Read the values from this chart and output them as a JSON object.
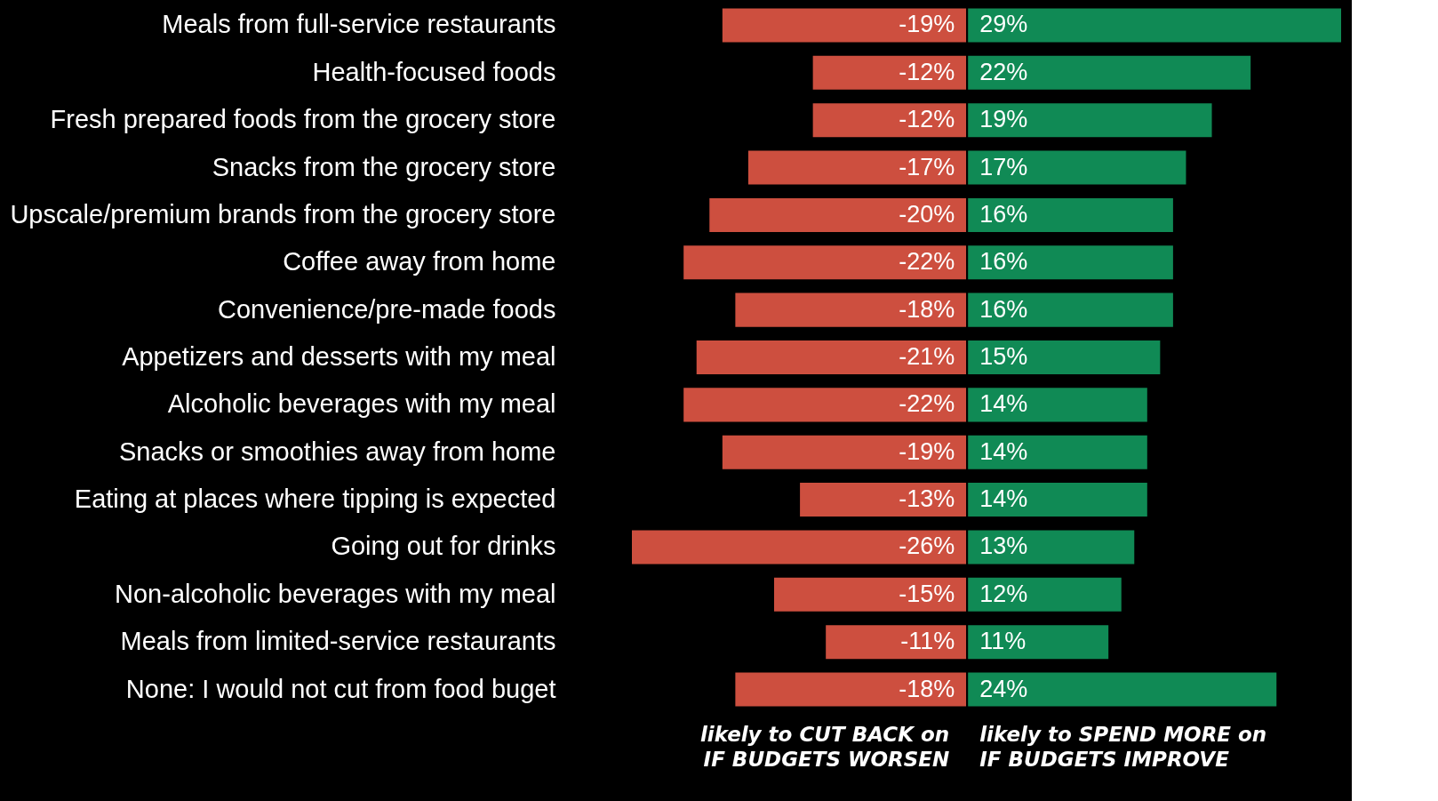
{
  "chart_data": {
    "type": "bar",
    "orientation": "horizontal",
    "stacked": true,
    "grid": false,
    "categories": [
      "Meals from full-service restaurants",
      "Health-focused foods",
      "Fresh prepared foods from the grocery store",
      "Snacks from the grocery store",
      "Upscale/premium brands from the grocery store",
      "Coffee away from home",
      "Convenience/pre-made foods",
      "Appetizers and desserts with my meal",
      "Alcoholic beverages with my meal",
      "Snacks or smoothies away from home",
      "Eating at places where tipping is expected",
      "Going out for drinks",
      "Non-alcoholic beverages with my meal",
      "Meals from limited-service restaurants",
      "None: I would not cut from food buget"
    ],
    "series": [
      {
        "name": "likely to CUT BACK on\nIF BUDGETS WORSEN",
        "color": "#cd4f3f",
        "values": [
          -19,
          -12,
          -12,
          -17,
          -20,
          -22,
          -18,
          -21,
          -22,
          -19,
          -13,
          -26,
          -15,
          -11,
          -18
        ],
        "value_labels": [
          "-19%",
          "-12%",
          "-12%",
          "-17%",
          "-20%",
          "-22%",
          "-18%",
          "-21%",
          "-22%",
          "-19%",
          "-13%",
          "-26%",
          "-15%",
          "-11%",
          "-18%"
        ]
      },
      {
        "name": "likely to SPEND MORE on\nIF BUDGETS IMPROVE",
        "color": "#108a55",
        "values": [
          29,
          22,
          19,
          17,
          16,
          16,
          16,
          15,
          14,
          14,
          14,
          13,
          12,
          11,
          24
        ],
        "value_labels": [
          "29%",
          "22%",
          "19%",
          "17%",
          "16%",
          "16%",
          "16%",
          "15%",
          "14%",
          "14%",
          "14%",
          "13%",
          "12%",
          "11%",
          "24%"
        ]
      }
    ]
  }
}
